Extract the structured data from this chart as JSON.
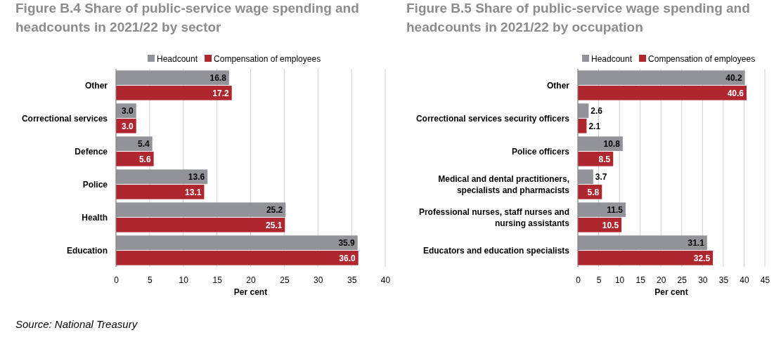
{
  "chart_data": [
    {
      "type": "bar",
      "orientation": "horizontal",
      "title": "Figure B.4 Share of public-service wage spending and headcounts in 2021/22 by sector",
      "xlabel": "Per cent",
      "categories": [
        "Other",
        "Correctional services",
        "Defence",
        "Police",
        "Health",
        "Education"
      ],
      "series": [
        {
          "name": "Headcount",
          "color": "#929399",
          "values": [
            16.8,
            3.0,
            5.4,
            13.6,
            25.2,
            35.9
          ],
          "value_labels": [
            "16.8",
            "3.0",
            "5.4",
            "13.6",
            "25.2",
            "35.9"
          ]
        },
        {
          "name": "Compensation of employees",
          "color": "#b0262e",
          "values": [
            17.2,
            3.0,
            5.6,
            13.1,
            25.1,
            36.0
          ],
          "value_labels": [
            "17.2",
            "3.0",
            "5.6",
            "13.1",
            "25.1",
            "36.0"
          ]
        }
      ],
      "xlim": [
        0,
        40
      ],
      "xticks": [
        0,
        5,
        10,
        15,
        20,
        25,
        30,
        35,
        40
      ],
      "grid": "x",
      "legend": "top",
      "annotations": [
        "Source: National Treasury"
      ]
    },
    {
      "type": "bar",
      "orientation": "horizontal",
      "title": "Figure B.5 Share of public-service wage spending and headcounts in 2021/22 by occupation",
      "xlabel": "Per cent",
      "categories": [
        "Other",
        "Correctional services security officers",
        "Police officers",
        "Medical and dental practitioners, specialists and pharmacists",
        "Professional nurses, staff nurses and nursing assistants",
        "Educators and education specialists"
      ],
      "series": [
        {
          "name": "Headcount",
          "color": "#929399",
          "values": [
            40.2,
            2.6,
            10.8,
            3.7,
            11.5,
            31.1
          ],
          "value_labels": [
            "40.2",
            "2.6",
            "10.8",
            "3.7",
            "11.5",
            "31.1"
          ]
        },
        {
          "name": "Compensation of employees",
          "color": "#b0262e",
          "values": [
            40.6,
            2.1,
            8.5,
            5.8,
            10.5,
            32.5
          ],
          "value_labels": [
            "40.6",
            "2.1",
            "8.5",
            "5.8",
            "10.5",
            "32.5"
          ]
        }
      ],
      "xlim": [
        0,
        45
      ],
      "xticks": [
        0,
        5,
        10,
        15,
        20,
        25,
        30,
        35,
        40,
        45
      ],
      "grid": "x",
      "legend": "top"
    }
  ]
}
